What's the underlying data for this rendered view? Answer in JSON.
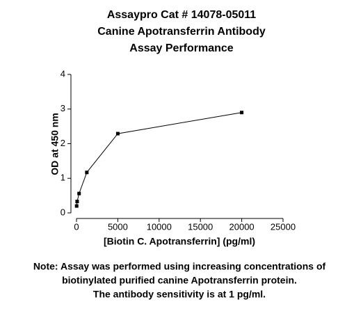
{
  "chart_data": {
    "type": "line",
    "title": [
      "Assaypro Cat # 14078-05011",
      "Canine Apotransferrin Antibody",
      "Assay Performance"
    ],
    "x_label": "[Biotin C. Apotransferrin] (pg/ml)",
    "y_label": "OD at 450 nm",
    "x": [
      20000,
      5000,
      1250,
      312.5,
      78.125,
      19.53
    ],
    "series": [
      {
        "color": "#000000",
        "values": [
          2.9,
          2.29,
          1.17,
          0.56,
          0.33,
          0.2
        ]
      }
    ],
    "xlim": [
      0,
      25000
    ],
    "xticks": [
      0,
      5000,
      10000,
      15000,
      20000,
      25000
    ],
    "ylim": [
      0,
      4
    ],
    "yticks": [
      0,
      1,
      2,
      3,
      4
    ],
    "grid": false,
    "notes": [
      "Note: Assay was performed using increasing concentrations of",
      "biotinylated purified canine Apotransferrin protein.",
      "The antibody sensitivity is at 1 pg/ml."
    ]
  }
}
